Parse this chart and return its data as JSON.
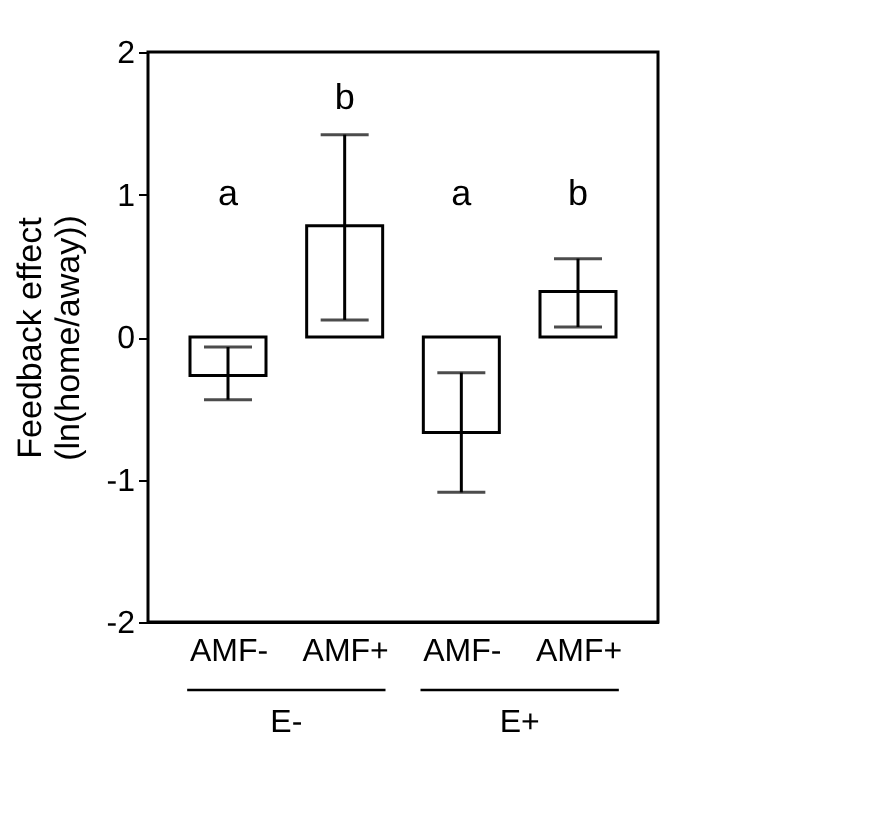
{
  "chart_data": {
    "type": "bar",
    "ylabel": "Feedback effect\n(ln(home/away))",
    "categories": [
      "AMF-",
      "AMF+",
      "AMF-",
      "AMF+"
    ],
    "values": [
      -0.27,
      0.78,
      -0.67,
      0.32
    ],
    "errors": [
      [
        -0.44,
        -0.07
      ],
      [
        0.12,
        1.42
      ],
      [
        -1.09,
        -0.25
      ],
      [
        0.07,
        0.55
      ]
    ],
    "color": "#ffffff",
    "ylim": [
      -2,
      2
    ],
    "yticks": [
      {
        "value": -2,
        "label": "-2"
      },
      {
        "value": -1,
        "label": "-1"
      },
      {
        "value": 0,
        "label": "0"
      },
      {
        "value": 1,
        "label": "1"
      },
      {
        "value": 2,
        "label": "2"
      }
    ],
    "grid": false,
    "annotations": [
      "a",
      "b",
      "a",
      "b",
      "E-",
      "E+"
    ]
  }
}
